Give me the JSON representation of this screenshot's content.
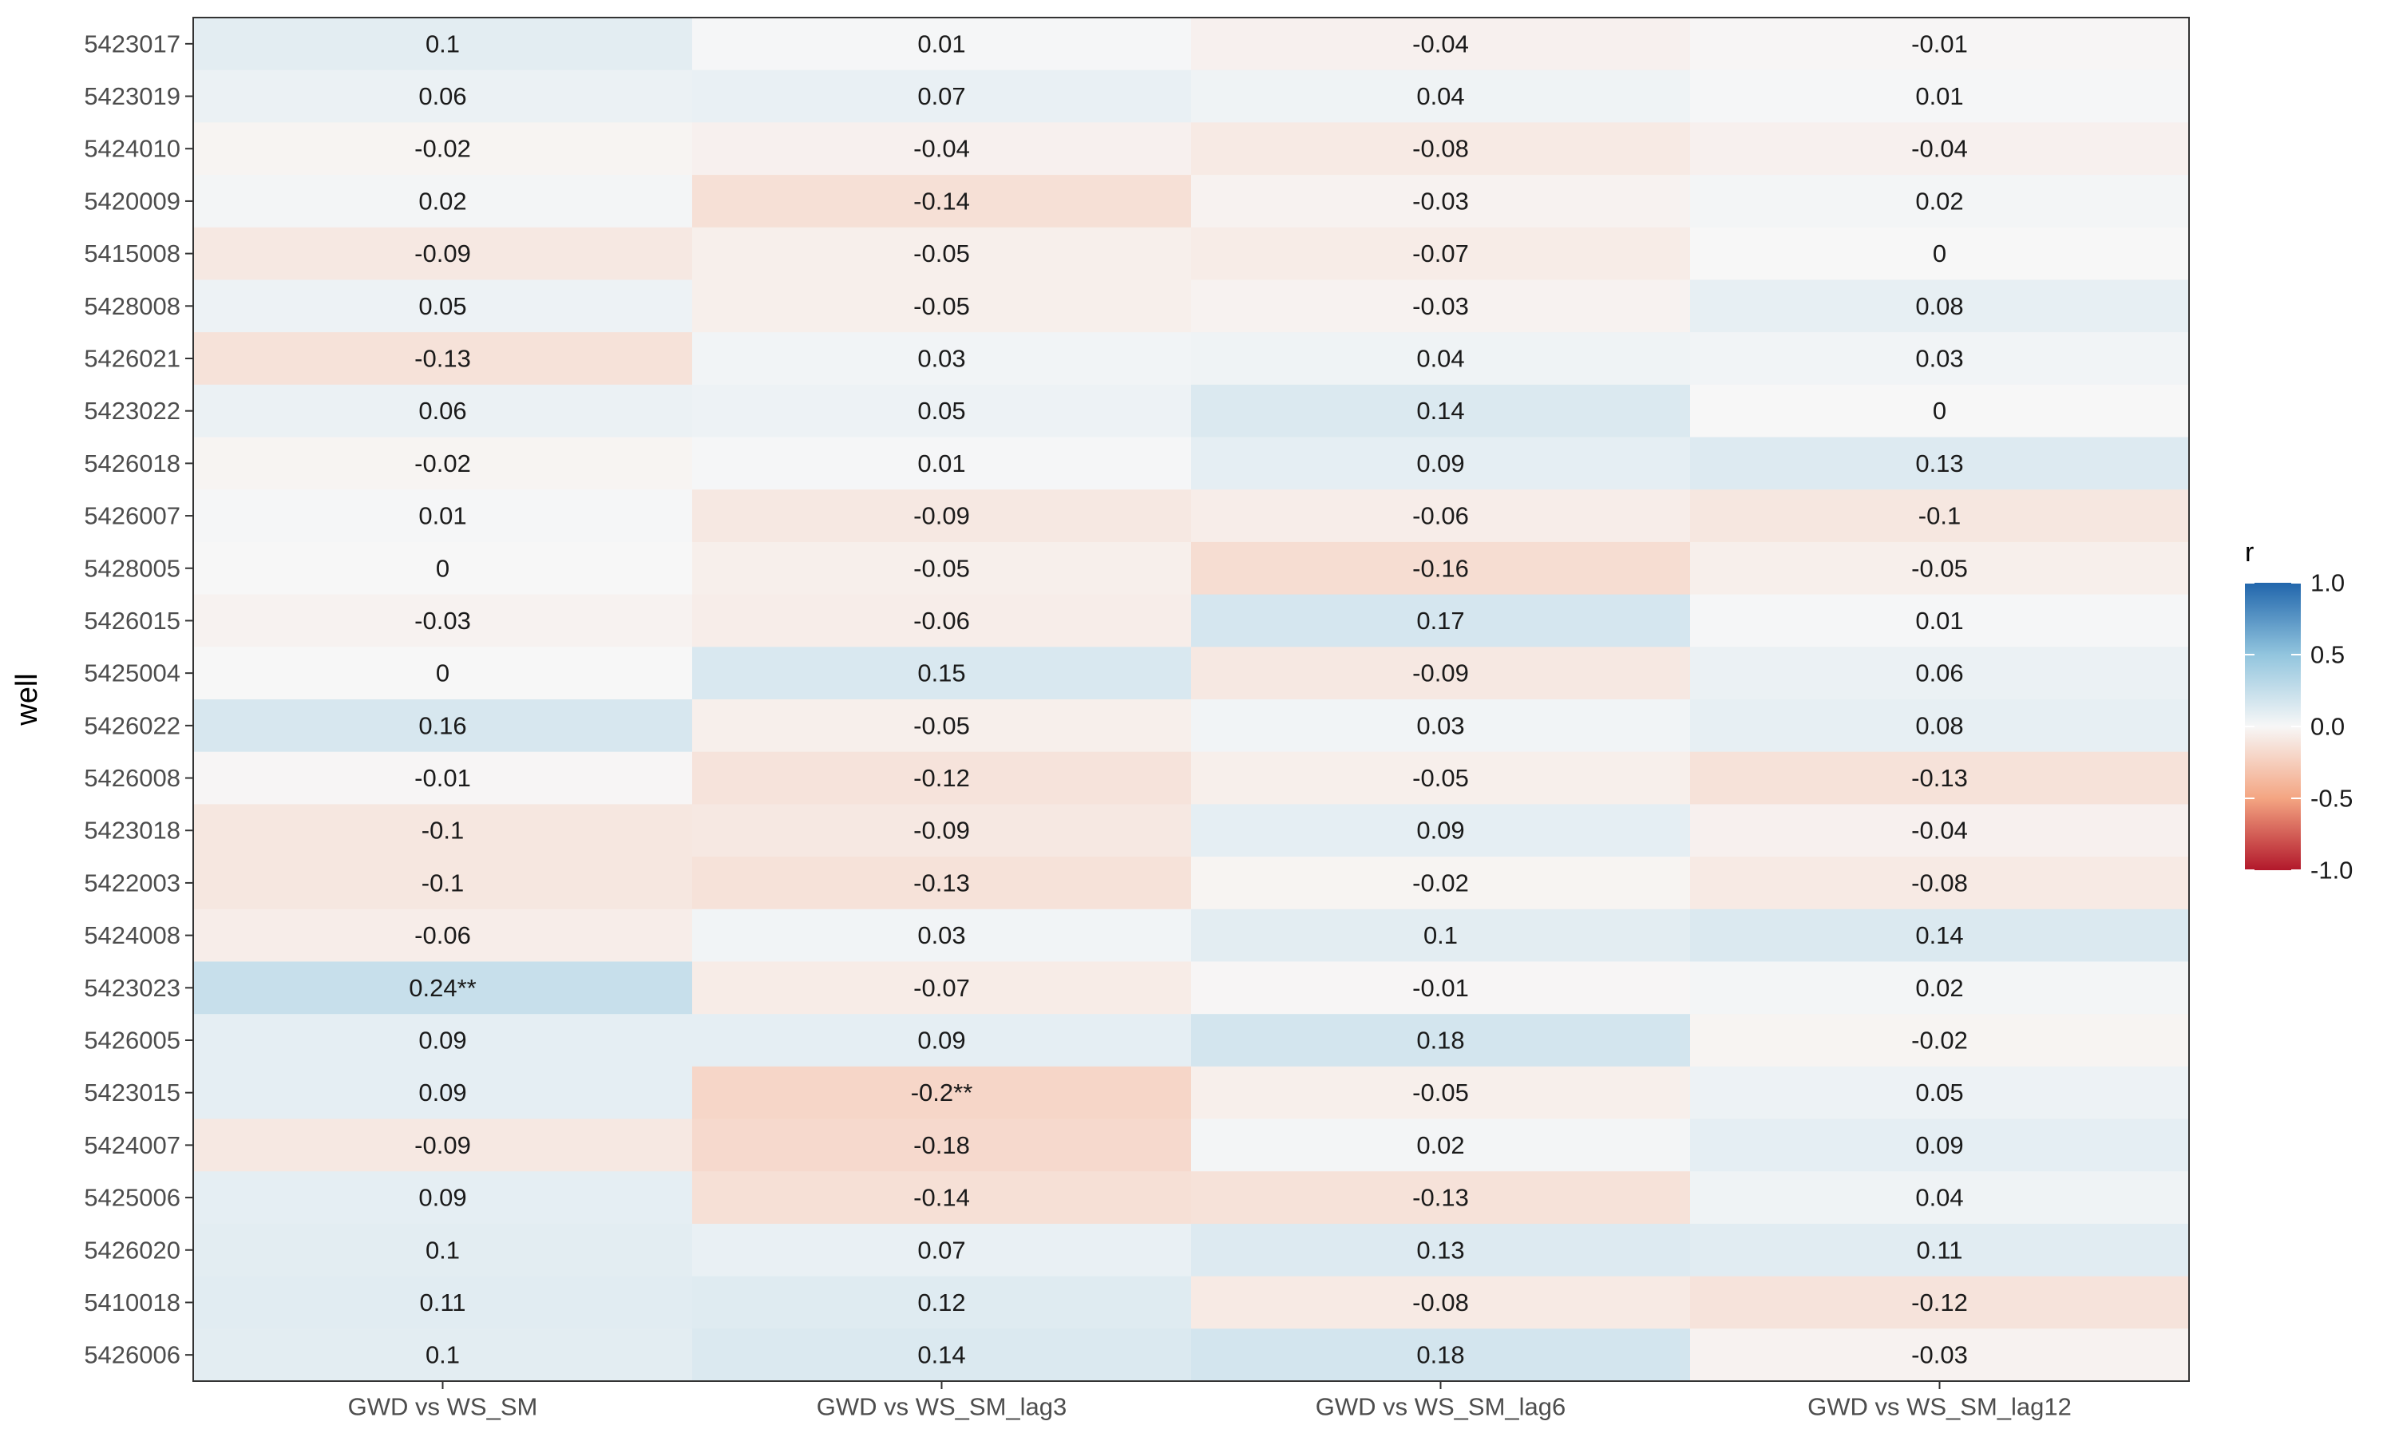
{
  "chart_data": {
    "type": "heatmap",
    "title": "",
    "xlabel": "",
    "ylabel": "well",
    "categories": [
      "GWD vs WS_SM",
      "GWD vs WS_SM_lag3",
      "GWD vs WS_SM_lag6",
      "GWD vs WS_SM_lag12"
    ],
    "rows": [
      {
        "well": "5423017",
        "labels": [
          "0.1",
          "0.01",
          "-0.04",
          "-0.01"
        ],
        "values": [
          0.1,
          0.01,
          -0.04,
          -0.01
        ]
      },
      {
        "well": "5423019",
        "labels": [
          "0.06",
          "0.07",
          "0.04",
          "0.01"
        ],
        "values": [
          0.06,
          0.07,
          0.04,
          0.01
        ]
      },
      {
        "well": "5424010",
        "labels": [
          "-0.02",
          "-0.04",
          "-0.08",
          "-0.04"
        ],
        "values": [
          -0.02,
          -0.04,
          -0.08,
          -0.04
        ]
      },
      {
        "well": "5420009",
        "labels": [
          "0.02",
          "-0.14",
          "-0.03",
          "0.02"
        ],
        "values": [
          0.02,
          -0.14,
          -0.03,
          0.02
        ]
      },
      {
        "well": "5415008",
        "labels": [
          "-0.09",
          "-0.05",
          "-0.07",
          "0"
        ],
        "values": [
          -0.09,
          -0.05,
          -0.07,
          0
        ]
      },
      {
        "well": "5428008",
        "labels": [
          "0.05",
          "-0.05",
          "-0.03",
          "0.08"
        ],
        "values": [
          0.05,
          -0.05,
          -0.03,
          0.08
        ]
      },
      {
        "well": "5426021",
        "labels": [
          "-0.13",
          "0.03",
          "0.04",
          "0.03"
        ],
        "values": [
          -0.13,
          0.03,
          0.04,
          0.03
        ]
      },
      {
        "well": "5423022",
        "labels": [
          "0.06",
          "0.05",
          "0.14",
          "0"
        ],
        "values": [
          0.06,
          0.05,
          0.14,
          0
        ]
      },
      {
        "well": "5426018",
        "labels": [
          "-0.02",
          "0.01",
          "0.09",
          "0.13"
        ],
        "values": [
          -0.02,
          0.01,
          0.09,
          0.13
        ]
      },
      {
        "well": "5426007",
        "labels": [
          "0.01",
          "-0.09",
          "-0.06",
          "-0.1"
        ],
        "values": [
          0.01,
          -0.09,
          -0.06,
          -0.1
        ]
      },
      {
        "well": "5428005",
        "labels": [
          "0",
          "-0.05",
          "-0.16",
          "-0.05"
        ],
        "values": [
          0,
          -0.05,
          -0.16,
          -0.05
        ]
      },
      {
        "well": "5426015",
        "labels": [
          "-0.03",
          "-0.06",
          "0.17",
          "0.01"
        ],
        "values": [
          -0.03,
          -0.06,
          0.17,
          0.01
        ]
      },
      {
        "well": "5425004",
        "labels": [
          "0",
          "0.15",
          "-0.09",
          "0.06"
        ],
        "values": [
          0,
          0.15,
          -0.09,
          0.06
        ]
      },
      {
        "well": "5426022",
        "labels": [
          "0.16",
          "-0.05",
          "0.03",
          "0.08"
        ],
        "values": [
          0.16,
          -0.05,
          0.03,
          0.08
        ]
      },
      {
        "well": "5426008",
        "labels": [
          "-0.01",
          "-0.12",
          "-0.05",
          "-0.13"
        ],
        "values": [
          -0.01,
          -0.12,
          -0.05,
          -0.13
        ]
      },
      {
        "well": "5423018",
        "labels": [
          "-0.1",
          "-0.09",
          "0.09",
          "-0.04"
        ],
        "values": [
          -0.1,
          -0.09,
          0.09,
          -0.04
        ]
      },
      {
        "well": "5422003",
        "labels": [
          "-0.1",
          "-0.13",
          "-0.02",
          "-0.08"
        ],
        "values": [
          -0.1,
          -0.13,
          -0.02,
          -0.08
        ]
      },
      {
        "well": "5424008",
        "labels": [
          "-0.06",
          "0.03",
          "0.1",
          "0.14"
        ],
        "values": [
          -0.06,
          0.03,
          0.1,
          0.14
        ]
      },
      {
        "well": "5423023",
        "labels": [
          "0.24**",
          "-0.07",
          "-0.01",
          "0.02"
        ],
        "values": [
          0.24,
          -0.07,
          -0.01,
          0.02
        ]
      },
      {
        "well": "5426005",
        "labels": [
          "0.09",
          "0.09",
          "0.18",
          "-0.02"
        ],
        "values": [
          0.09,
          0.09,
          0.18,
          -0.02
        ]
      },
      {
        "well": "5423015",
        "labels": [
          "0.09",
          "-0.2**",
          "-0.05",
          "0.05"
        ],
        "values": [
          0.09,
          -0.2,
          -0.05,
          0.05
        ]
      },
      {
        "well": "5424007",
        "labels": [
          "-0.09",
          "-0.18",
          "0.02",
          "0.09"
        ],
        "values": [
          -0.09,
          -0.18,
          0.02,
          0.09
        ]
      },
      {
        "well": "5425006",
        "labels": [
          "0.09",
          "-0.14",
          "-0.13",
          "0.04"
        ],
        "values": [
          0.09,
          -0.14,
          -0.13,
          0.04
        ]
      },
      {
        "well": "5426020",
        "labels": [
          "0.1",
          "0.07",
          "0.13",
          "0.11"
        ],
        "values": [
          0.1,
          0.07,
          0.13,
          0.11
        ]
      },
      {
        "well": "5410018",
        "labels": [
          "0.11",
          "0.12",
          "-0.08",
          "-0.12"
        ],
        "values": [
          0.11,
          0.12,
          -0.08,
          -0.12
        ]
      },
      {
        "well": "5426006",
        "labels": [
          "0.1",
          "0.14",
          "0.18",
          "-0.03"
        ],
        "values": [
          0.1,
          0.14,
          0.18,
          -0.03
        ]
      }
    ],
    "legend": {
      "title": "r",
      "placement": "right",
      "ticks": [
        {
          "value": 1.0,
          "label": "1.0"
        },
        {
          "value": 0.5,
          "label": "0.5"
        },
        {
          "value": 0.0,
          "label": "0.0"
        },
        {
          "value": -0.5,
          "label": "-0.5"
        },
        {
          "value": -1.0,
          "label": "-1.0"
        }
      ],
      "range": [
        -1.0,
        1.0
      ]
    },
    "colors": {
      "negative": "#b2182b",
      "negative_mid": "#f4a582",
      "neutral": "#f7f7f7",
      "positive_mid": "#92c5de",
      "positive": "#2166ac"
    },
    "grid": false
  }
}
